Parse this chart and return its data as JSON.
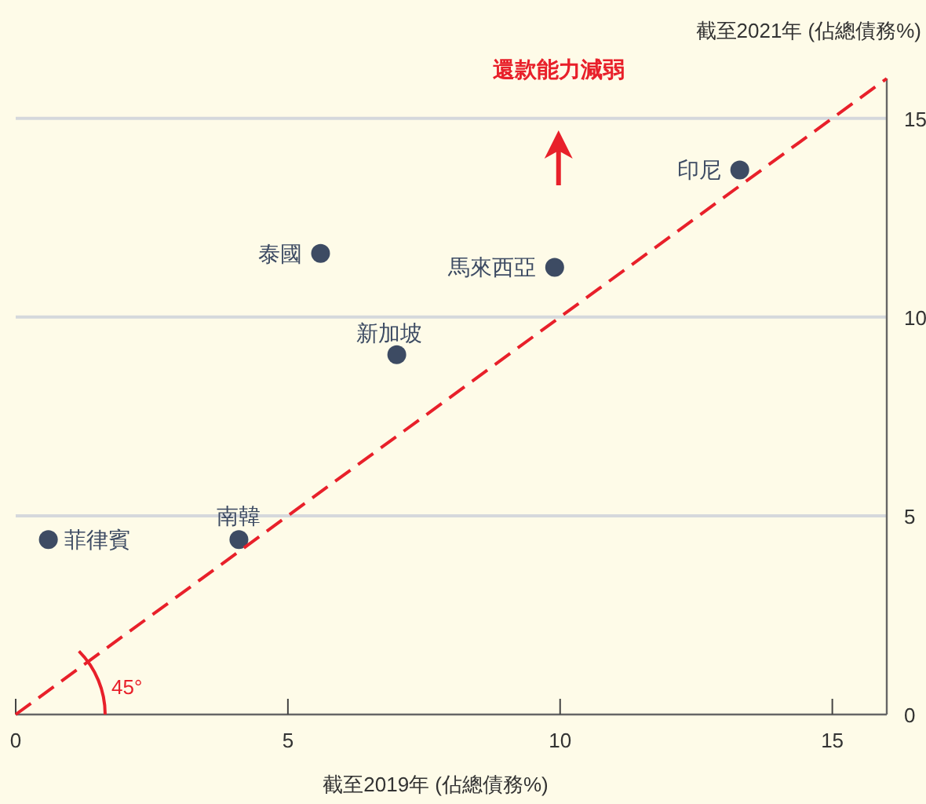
{
  "chart_data": {
    "type": "scatter",
    "xlabel": "截至2019年 (佔總債務%)",
    "ylabel": "截至2021年 (佔總債務%)",
    "xlim": [
      0,
      16
    ],
    "ylim": [
      0,
      16
    ],
    "xticks": [
      0,
      5,
      10,
      15
    ],
    "yticks": [
      0,
      5,
      10,
      15
    ],
    "grid": "y",
    "series": [
      {
        "marker": "circle",
        "color": "#3d4b63",
        "x": [
          0.6,
          4.1,
          7.0,
          5.6,
          9.9,
          13.3
        ],
        "values": [
          4.4,
          4.4,
          9.05,
          11.6,
          11.25,
          13.7
        ]
      },
      {
        "type": "line",
        "color": "#e8202a",
        "line_style": "dashed",
        "x": [
          0,
          16
        ],
        "values": [
          0,
          16
        ]
      }
    ],
    "annotations": [
      {
        "text": "菲律賓",
        "x": 0.6,
        "y": 4.4
      },
      {
        "text": "南韓",
        "x": 4.1,
        "y": 4.4
      },
      {
        "text": "新加坡",
        "x": 7.0,
        "y": 9.05
      },
      {
        "text": "泰國",
        "x": 5.6,
        "y": 11.6
      },
      {
        "text": "馬來西亞",
        "x": 9.9,
        "y": 11.25
      },
      {
        "text": "印尼",
        "x": 13.3,
        "y": 13.7
      },
      "還款能力減弱",
      "45°"
    ]
  }
}
